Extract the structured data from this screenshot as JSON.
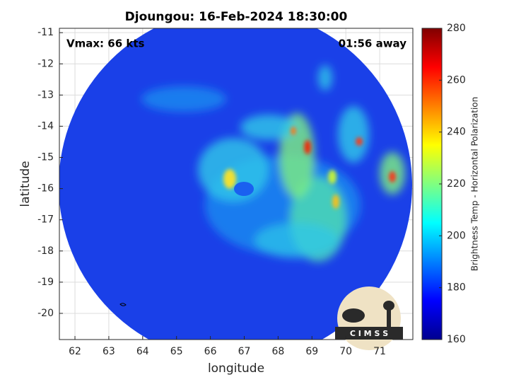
{
  "chart_data": {
    "type": "map",
    "title": "Djoungou: 16-Feb-2024 18:30:00",
    "x_label": "longitude",
    "y_label": "latitude",
    "annotations": [
      "Vmax: 66 kts",
      "01:56 away"
    ],
    "logo": "C I M S S",
    "xlim": [
      61.54,
      71.98
    ],
    "xticks": [
      62,
      63,
      64,
      65,
      66,
      67,
      68,
      69,
      70,
      71
    ],
    "ylim": [
      -20.84,
      -10.86
    ],
    "yticks": [
      -20,
      -19,
      -18,
      -17,
      -16,
      -15,
      -14,
      -13,
      -12,
      -11
    ],
    "grid": true,
    "colorbar": {
      "label": "Brightness Temp - Horizontal Polarization",
      "clim": [
        160,
        280
      ],
      "ticks": [
        160,
        180,
        200,
        220,
        240,
        260,
        280
      ],
      "colormap": "jet"
    }
  }
}
